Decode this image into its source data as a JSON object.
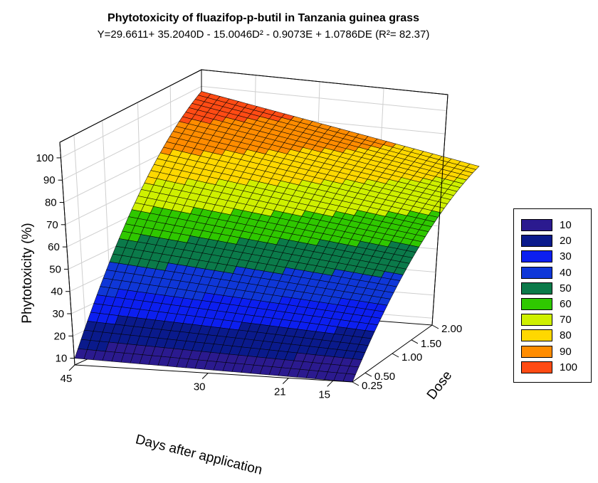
{
  "chart_data": {
    "type": "surface3d",
    "title": "Phytotoxicity of fluazifop-p-butil in Tanzania guinea grass",
    "subtitle": "Y=29.6611+ 35.2040D - 15.0046D² - 0.9073E + 1.0786DE (R²= 82.37)",
    "zlabel": "Phytotoxicity (%)",
    "xlabel": "Days after application",
    "ylabel": "Dose",
    "z_ticks": [
      "10",
      "20",
      "30",
      "40",
      "50",
      "60",
      "70",
      "80",
      "90",
      "100"
    ],
    "x_ticks": [
      "45",
      "30",
      "21",
      "15"
    ],
    "y_ticks": [
      "2.00",
      "1.50",
      "1.00",
      "0.50",
      "0.25"
    ],
    "surface_corners": [
      {
        "days": 45,
        "dose": 0.25,
        "value": 10
      },
      {
        "days": 15,
        "dose": 0.25,
        "value": 7
      },
      {
        "days": 45,
        "dose": 2.0,
        "value": 104
      },
      {
        "days": 15,
        "dose": 2.0,
        "value": 78
      }
    ],
    "grid": true,
    "legend_position": "right",
    "legend": [
      {
        "label": "10",
        "color": "#2b1a8f"
      },
      {
        "label": "20",
        "color": "#0a1a8c"
      },
      {
        "label": "30",
        "color": "#0c1ff0"
      },
      {
        "label": "40",
        "color": "#0f37d8"
      },
      {
        "label": "50",
        "color": "#0b7a4a"
      },
      {
        "label": "60",
        "color": "#2fc800"
      },
      {
        "label": "70",
        "color": "#cff000"
      },
      {
        "label": "80",
        "color": "#ffd800"
      },
      {
        "label": "90",
        "color": "#ff8c00"
      },
      {
        "label": "100",
        "color": "#ff4b14"
      }
    ]
  }
}
